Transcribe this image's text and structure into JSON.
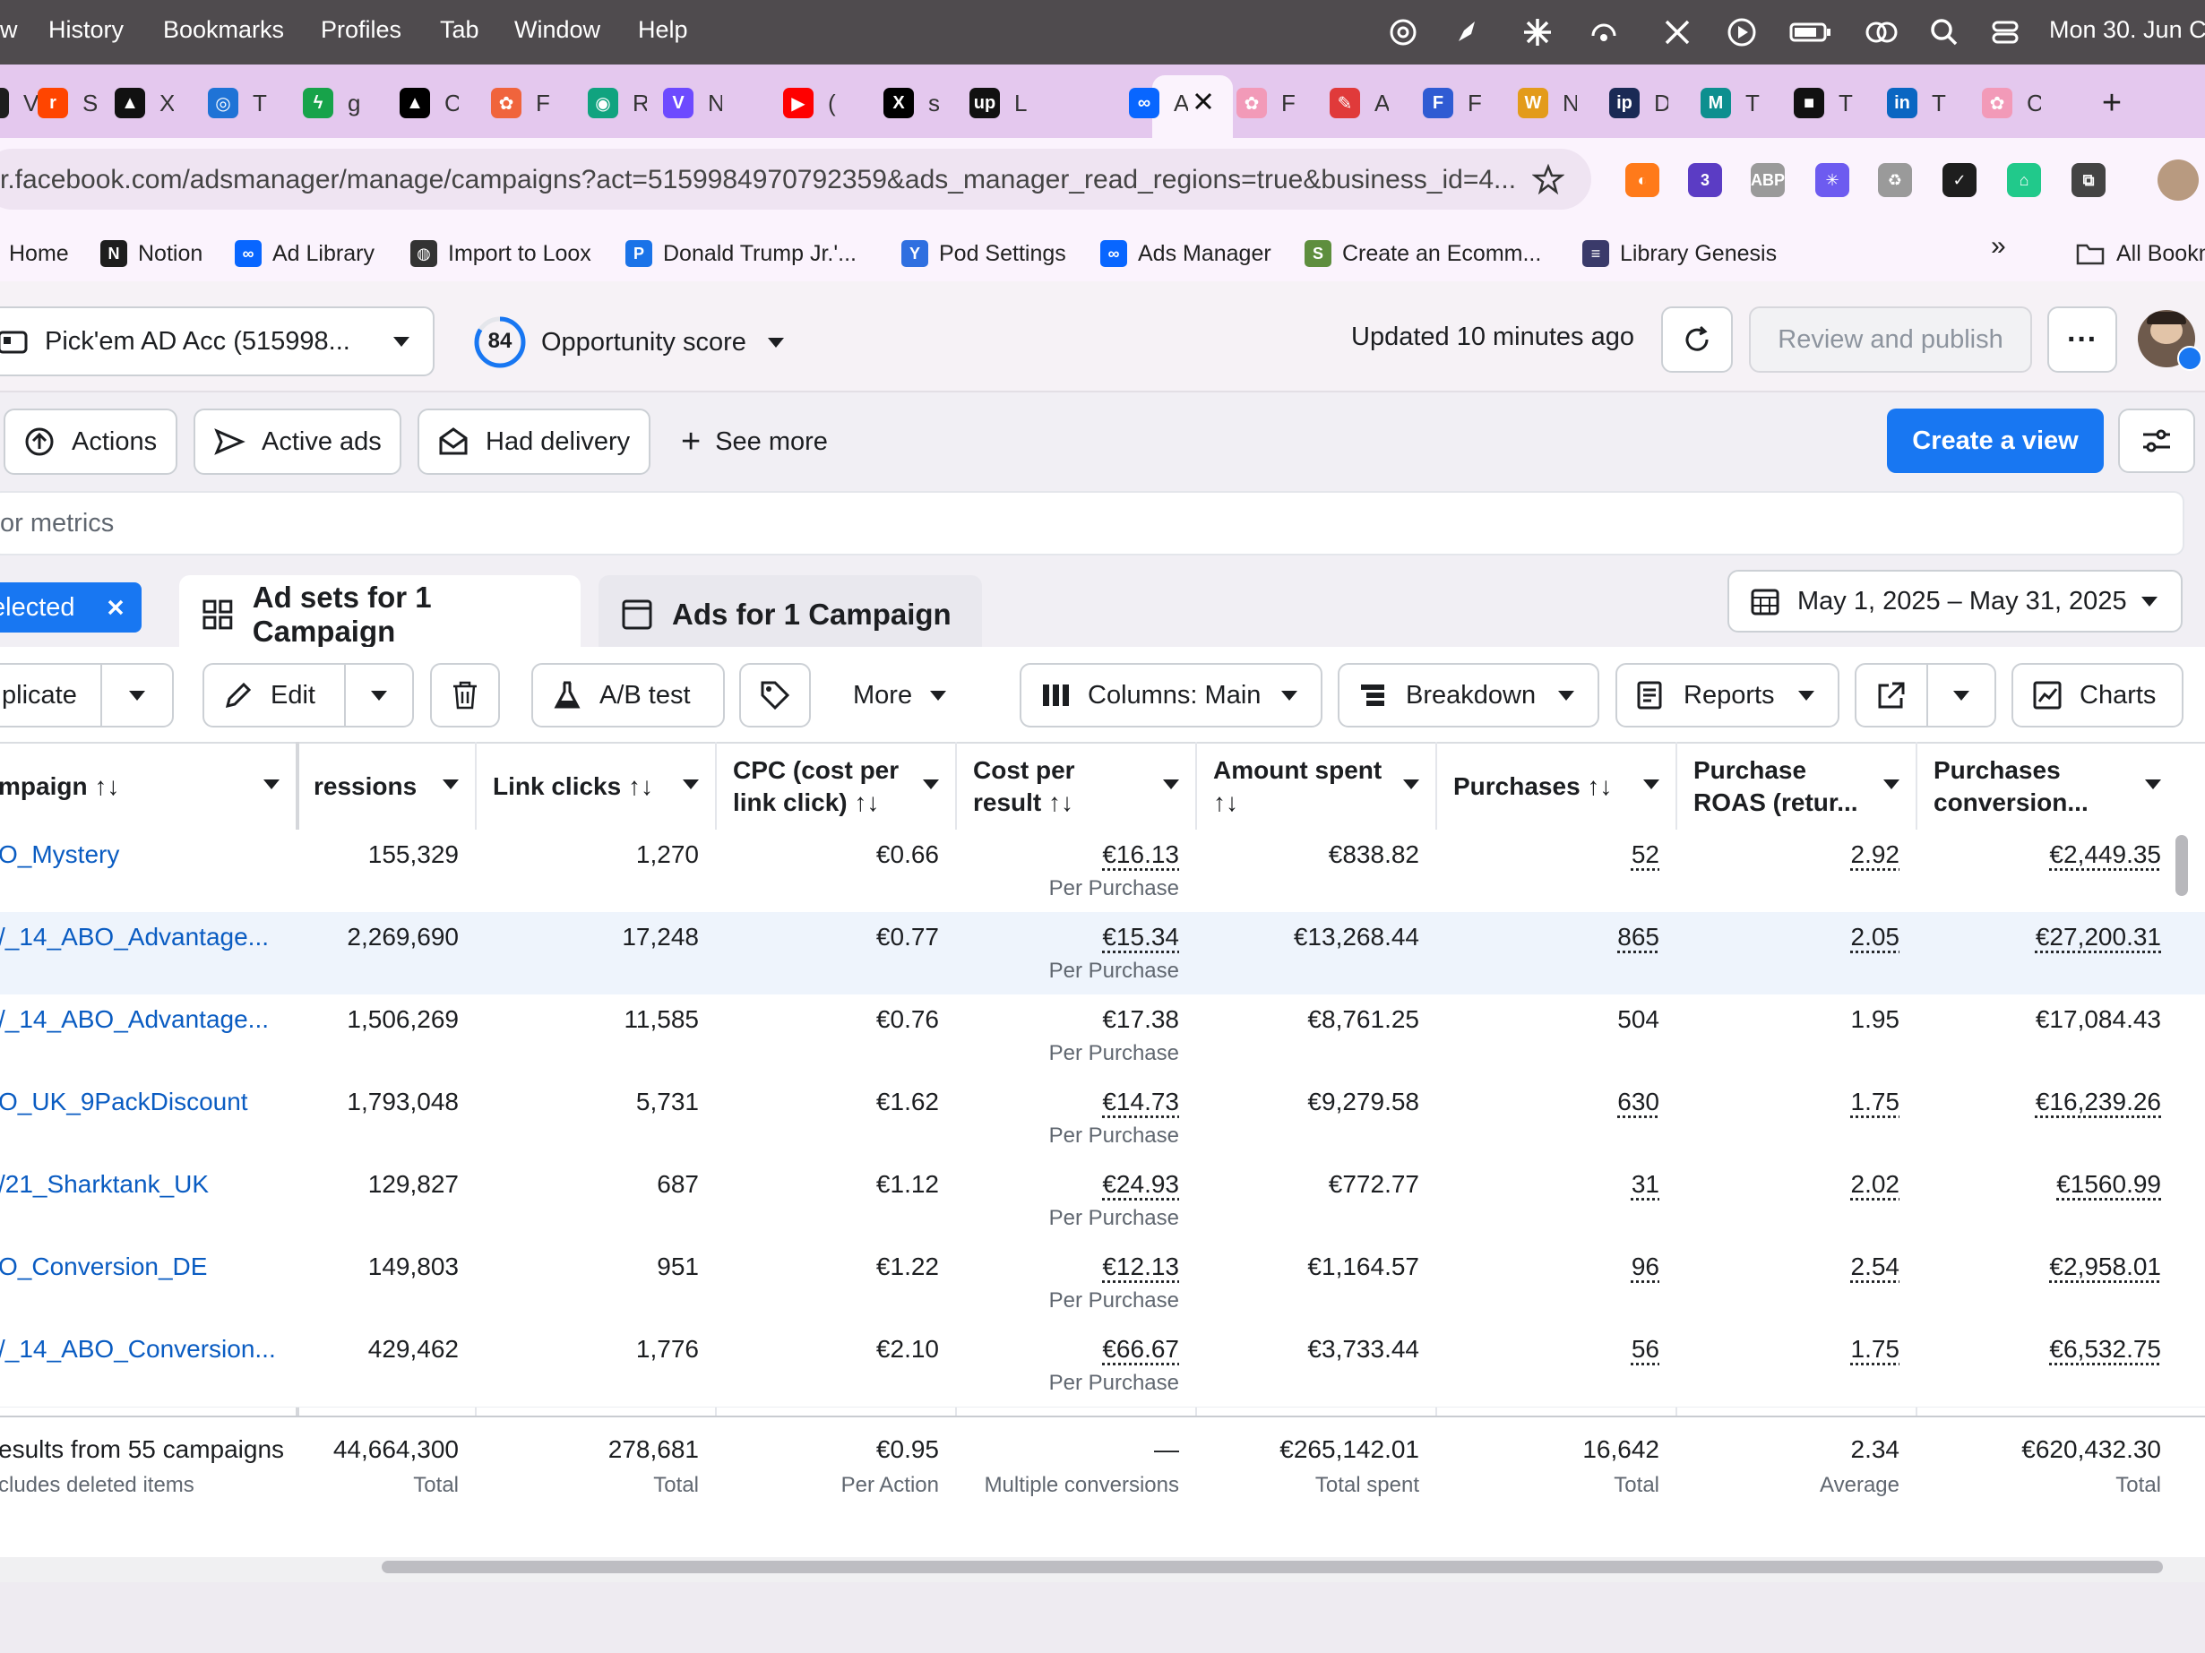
{
  "menubar": {
    "items": [
      "w",
      "History",
      "Bookmarks",
      "Profiles",
      "Tab",
      "Window",
      "Help"
    ],
    "clock": "Mon 30. Jun  C"
  },
  "tabs": [
    {
      "icon": "monday-icon",
      "color": "#1e1e1e",
      "glyph": "M",
      "label": "V"
    },
    {
      "icon": "reddit-icon",
      "color": "#ff4500",
      "glyph": "r",
      "label": "S"
    },
    {
      "icon": "triangle-app-icon",
      "color": "#111111",
      "glyph": "▲",
      "label": "X"
    },
    {
      "icon": "target-app-icon",
      "color": "#1f73d6",
      "glyph": "◎",
      "label": "T"
    },
    {
      "icon": "bolt-app-icon",
      "color": "#17a34a",
      "glyph": "ϟ",
      "label": "g"
    },
    {
      "icon": "vercel-icon",
      "color": "#000000",
      "glyph": "▲",
      "label": "C"
    },
    {
      "icon": "figma-like-icon",
      "color": "#f0643c",
      "glyph": "✿",
      "label": "F"
    },
    {
      "icon": "chatgpt-icon",
      "color": "#10a37f",
      "glyph": "◉",
      "label": "R"
    },
    {
      "icon": "proton-vpn-icon",
      "color": "#6d4aff",
      "glyph": "V",
      "label": "N"
    },
    {
      "icon": "youtube-icon",
      "color": "#ff0000",
      "glyph": "▶",
      "label": "("
    },
    {
      "icon": "x-icon",
      "color": "#000000",
      "glyph": "X",
      "label": "s"
    },
    {
      "icon": "upwork-icon",
      "color": "#111111",
      "glyph": "up",
      "label": "L"
    },
    {
      "icon": "meta-icon",
      "color": "#0866ff",
      "glyph": "∞",
      "label": "A"
    },
    {
      "icon": "flower-app-icon",
      "color": "#f29ab8",
      "glyph": "✿",
      "label": "F"
    },
    {
      "icon": "red-app-icon",
      "color": "#e03a3a",
      "glyph": "✎",
      "label": "A"
    },
    {
      "icon": "forms-app-icon",
      "color": "#2f5bd3",
      "glyph": "F",
      "label": "F"
    },
    {
      "icon": "woocommerce-icon",
      "color": "#e39b1b",
      "glyph": "W",
      "label": "N"
    },
    {
      "icon": "ip-app-icon",
      "color": "#1a2a55",
      "glyph": "ip",
      "label": "D"
    },
    {
      "icon": "teal-m-icon",
      "color": "#0d8f8f",
      "glyph": "M",
      "label": "T"
    },
    {
      "icon": "square-app-icon",
      "color": "#111111",
      "glyph": "■",
      "label": "T"
    },
    {
      "icon": "linkedin-icon",
      "color": "#0a66c2",
      "glyph": "in",
      "label": "T"
    },
    {
      "icon": "flower-app-icon",
      "color": "#f29ab8",
      "glyph": "✿",
      "label": "C"
    }
  ],
  "address": {
    "url": "r.facebook.com/adsmanager/manage/campaigns?act=5159984970792359&ads_manager_read_regions=true&business_id=4..."
  },
  "extensions": [
    {
      "icon": "orange-blue-ext-icon",
      "color": "#ff7a1a",
      "glyph": "◐"
    },
    {
      "icon": "purple-ext-icon",
      "color": "#5b3cc4",
      "glyph": "3"
    },
    {
      "icon": "adblock-plus-icon",
      "color": "#9a9a9a",
      "glyph": "ABP"
    },
    {
      "icon": "gear-ext-icon",
      "color": "#6d5bf0",
      "glyph": "✳"
    },
    {
      "icon": "puzzle-ext-icon",
      "color": "#9a9a9a",
      "glyph": "♻"
    },
    {
      "icon": "check-ext-icon",
      "color": "#1e1e1e",
      "glyph": "✓"
    },
    {
      "icon": "green-ext-icon",
      "color": "#21c98b",
      "glyph": "⌂"
    },
    {
      "icon": "extensions-puzzle-icon",
      "color": "#444444",
      "glyph": "⧉"
    }
  ],
  "bookmarks": [
    {
      "label": "Home",
      "icon": "",
      "color": ""
    },
    {
      "label": "Notion",
      "icon": "notion-icon",
      "color": "#1e1e1e",
      "glyph": "N"
    },
    {
      "label": "Ad Library",
      "icon": "meta-icon",
      "color": "#0866ff",
      "glyph": "∞"
    },
    {
      "label": "Import to Loox",
      "icon": "globe-icon",
      "color": "#333333",
      "glyph": "◍"
    },
    {
      "label": "Donald Trump Jr.'...",
      "icon": "p-icon",
      "color": "#1a73e8",
      "glyph": "P"
    },
    {
      "label": "Pod Settings",
      "icon": "printify-icon",
      "color": "#2f6fe0",
      "glyph": "Y"
    },
    {
      "label": "Ads Manager",
      "icon": "meta-icon",
      "color": "#0866ff",
      "glyph": "∞"
    },
    {
      "label": "Create an Ecomm...",
      "icon": "shopify-icon",
      "color": "#5e8e3e",
      "glyph": "S"
    },
    {
      "label": "Library Genesis",
      "icon": "libgen-icon",
      "color": "#3a3a6a",
      "glyph": "≡"
    }
  ],
  "bookmarks_overflow": "»",
  "all_bookmarks": "All Bookm",
  "account": {
    "name": "Pick'em AD Acc (515998..."
  },
  "opportunity": {
    "score": "84",
    "label": "Opportunity score",
    "fraction": 0.84
  },
  "status": {
    "updated": "Updated 10 minutes ago"
  },
  "buttons": {
    "review": "Review and publish",
    "more": "···",
    "create_view": "Create a view"
  },
  "filters": [
    "Actions",
    "Active ads",
    "Had delivery",
    "See more"
  ],
  "search": {
    "placeholder": "or metrics"
  },
  "level_tabs": {
    "selected": "elected",
    "adsets": "Ad sets for 1 Campaign",
    "ads": "Ads for 1 Campaign"
  },
  "date_range": "May 1, 2025 – May 31, 2025",
  "table_toolbar": {
    "duplicate": "plicate",
    "edit": "Edit",
    "ab_test": "A/B test",
    "more": "More",
    "columns": "Columns: Main",
    "breakdown": "Breakdown",
    "reports": "Reports",
    "charts": "Charts"
  },
  "columns": [
    {
      "title": "mpaign ↑↓",
      "sub": ""
    },
    {
      "title": "ressions",
      "sub": ""
    },
    {
      "title": "Link clicks ↑↓",
      "sub": ""
    },
    {
      "title": "CPC (cost per",
      "sub": "link click) ↑↓"
    },
    {
      "title": "Cost per",
      "sub": "result ↑↓"
    },
    {
      "title": "Amount spent",
      "sub": "↑↓"
    },
    {
      "title": "Purchases ↑↓",
      "sub": ""
    },
    {
      "title": "Purchase",
      "sub": "ROAS (retur..."
    },
    {
      "title": "Purchases",
      "sub": "conversion..."
    }
  ],
  "rows": [
    {
      "name": "O_Mystery",
      "impressions": "155,329",
      "clicks": "1,270",
      "cpc": "€0.66",
      "cost": "€16.13",
      "cost_sub": "Per Purchase",
      "spent": "€838.82",
      "purchases": "52",
      "roas": "2.92",
      "conv": "€2,449.35",
      "u": true
    },
    {
      "name": "/_14_ABO_Advantage...",
      "impressions": "2,269,690",
      "clicks": "17,248",
      "cpc": "€0.77",
      "cost": "€15.34",
      "cost_sub": "Per Purchase",
      "spent": "€13,268.44",
      "purchases": "865",
      "roas": "2.05",
      "conv": "€27,200.31",
      "u": true,
      "hl": true
    },
    {
      "name": "/_14_ABO_Advantage...",
      "impressions": "1,506,269",
      "clicks": "11,585",
      "cpc": "€0.76",
      "cost": "€17.38",
      "cost_sub": "Per Purchase",
      "spent": "€8,761.25",
      "purchases": "504",
      "roas": "1.95",
      "conv": "€17,084.43",
      "u": false
    },
    {
      "name": "O_UK_9PackDiscount",
      "impressions": "1,793,048",
      "clicks": "5,731",
      "cpc": "€1.62",
      "cost": "€14.73",
      "cost_sub": "Per Purchase",
      "spent": "€9,279.58",
      "purchases": "630",
      "roas": "1.75",
      "conv": "€16,239.26",
      "u": true
    },
    {
      "name": "/21_Sharktank_UK",
      "impressions": "129,827",
      "clicks": "687",
      "cpc": "€1.12",
      "cost": "€24.93",
      "cost_sub": "Per Purchase",
      "spent": "€772.77",
      "purchases": "31",
      "roas": "2.02",
      "conv": "€1560.99",
      "u": true
    },
    {
      "name": "O_Conversion_DE",
      "impressions": "149,803",
      "clicks": "951",
      "cpc": "€1.22",
      "cost": "€12.13",
      "cost_sub": "Per Purchase",
      "spent": "€1,164.57",
      "purchases": "96",
      "roas": "2.54",
      "conv": "€2,958.01",
      "u": true
    },
    {
      "name": "/_14_ABO_Conversion...",
      "impressions": "429,462",
      "clicks": "1,776",
      "cpc": "€2.10",
      "cost": "€66.67",
      "cost_sub": "Per Purchase",
      "spent": "€3,733.44",
      "purchases": "56",
      "roas": "1.75",
      "conv": "€6,532.75",
      "u": true
    }
  ],
  "totals": {
    "name": "esults from 55 campaigns",
    "name_sub": "cludes deleted items",
    "impressions": "44,664,300",
    "impressions_sub": "Total",
    "clicks": "278,681",
    "clicks_sub": "Total",
    "cpc": "€0.95",
    "cpc_sub": "Per Action",
    "cost": "—",
    "cost_sub": "Multiple conversions",
    "spent": "€265,142.01",
    "spent_sub": "Total spent",
    "purchases": "16,642",
    "purchases_sub": "Total",
    "roas": "2.34",
    "roas_sub": "Average",
    "conv": "€620,432.30",
    "conv_sub": "Total"
  }
}
